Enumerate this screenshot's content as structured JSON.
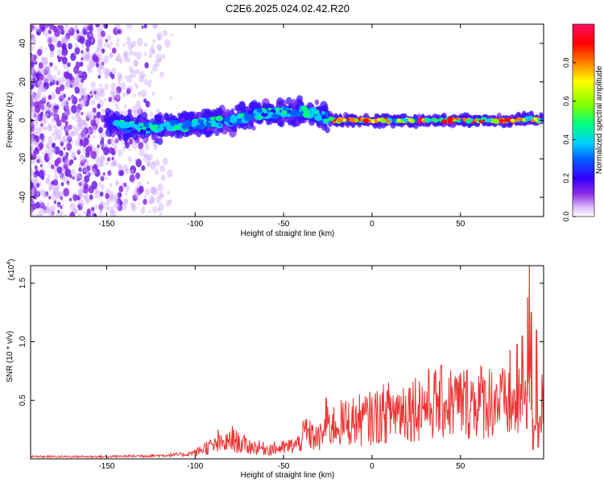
{
  "figure": {
    "title": "C2E6.2025.024.02.42.R20"
  },
  "chart_data": [
    {
      "type": "heatmap",
      "panel": "spectrogram",
      "xlabel": "Height of straight line (km)",
      "ylabel": "Frequency (Hz)",
      "xlim": [
        -193,
        97
      ],
      "ylim": [
        -50,
        50
      ],
      "x_ticks": [
        -150,
        -100,
        -50,
        0,
        50
      ],
      "y_ticks": [
        -40,
        -20,
        0,
        20,
        40
      ],
      "colorbar": {
        "label": "Normalized spectral amplitude",
        "range": [
          0,
          1
        ],
        "ticks": [
          0.0,
          0.2,
          0.4,
          0.6,
          0.8
        ],
        "colormap": [
          "#ffffff",
          "#d8b8ff",
          "#8a2be2",
          "#3300ff",
          "#0060ff",
          "#00d0ff",
          "#00ff80",
          "#80ff00",
          "#ffff00",
          "#ff8000",
          "#ff0000",
          "#ff1060"
        ]
      },
      "trace_center_hz": [
        [
          -150,
          -1
        ],
        [
          -140,
          -3
        ],
        [
          -130,
          -4
        ],
        [
          -120,
          -4
        ],
        [
          -110,
          -3
        ],
        [
          -100,
          -2
        ],
        [
          -90,
          -1
        ],
        [
          -80,
          0
        ],
        [
          -70,
          2
        ],
        [
          -60,
          4
        ],
        [
          -50,
          4
        ],
        [
          -40,
          5
        ],
        [
          -30,
          3
        ],
        [
          -25,
          1
        ],
        [
          -20,
          0
        ],
        [
          0,
          0
        ],
        [
          50,
          0
        ],
        [
          80,
          0
        ],
        [
          90,
          1
        ],
        [
          95,
          0
        ]
      ]
    },
    {
      "type": "line",
      "panel": "snr",
      "xlabel": "Height of straight line (km)",
      "ylabel": "SNR (10 * v/v)",
      "y_multiplier": "(x10",
      "y_multiplier_exp": "4",
      "y_multiplier_close": ")",
      "xlim": [
        -193,
        97
      ],
      "ylim": [
        0,
        1.65
      ],
      "x_ticks": [
        -150,
        -100,
        -50,
        0,
        50
      ],
      "y_ticks": [
        0.5,
        1.0,
        1.5
      ],
      "y_tick_labels": [
        "0.5",
        "1.0",
        "1.5"
      ],
      "series": [
        {
          "color": "#ee3333",
          "envelope": [
            [
              -193,
              0.02
            ],
            [
              -150,
              0.02
            ],
            [
              -120,
              0.03
            ],
            [
              -105,
              0.04
            ],
            [
              -100,
              0.06
            ],
            [
              -95,
              0.12
            ],
            [
              -85,
              0.16
            ],
            [
              -78,
              0.2
            ],
            [
              -70,
              0.14
            ],
            [
              -60,
              0.11
            ],
            [
              -50,
              0.12
            ],
            [
              -42,
              0.16
            ],
            [
              -38,
              0.28
            ],
            [
              -30,
              0.22
            ],
            [
              -25,
              0.35
            ],
            [
              -20,
              0.38
            ],
            [
              -10,
              0.42
            ],
            [
              0,
              0.45
            ],
            [
              10,
              0.52
            ],
            [
              20,
              0.56
            ],
            [
              30,
              0.6
            ],
            [
              40,
              0.62
            ],
            [
              50,
              0.62
            ],
            [
              60,
              0.64
            ],
            [
              70,
              0.65
            ],
            [
              75,
              0.6
            ],
            [
              80,
              0.55
            ],
            [
              85,
              0.62
            ],
            [
              88,
              0.9
            ],
            [
              90,
              0.7
            ],
            [
              92,
              0.45
            ],
            [
              97,
              0.62
            ]
          ],
          "spikes": [
            [
              -26,
              0.52
            ],
            [
              -37,
              0.34
            ],
            [
              -79,
              0.28
            ],
            [
              -87,
              0.25
            ],
            [
              78,
              0.93
            ],
            [
              82,
              0.98
            ],
            [
              85,
              1.05
            ],
            [
              88,
              1.38
            ],
            [
              89,
              1.65
            ],
            [
              90,
              1.25
            ],
            [
              91,
              0.08
            ],
            [
              93,
              1.1
            ],
            [
              94,
              0.1
            ]
          ]
        }
      ]
    }
  ]
}
